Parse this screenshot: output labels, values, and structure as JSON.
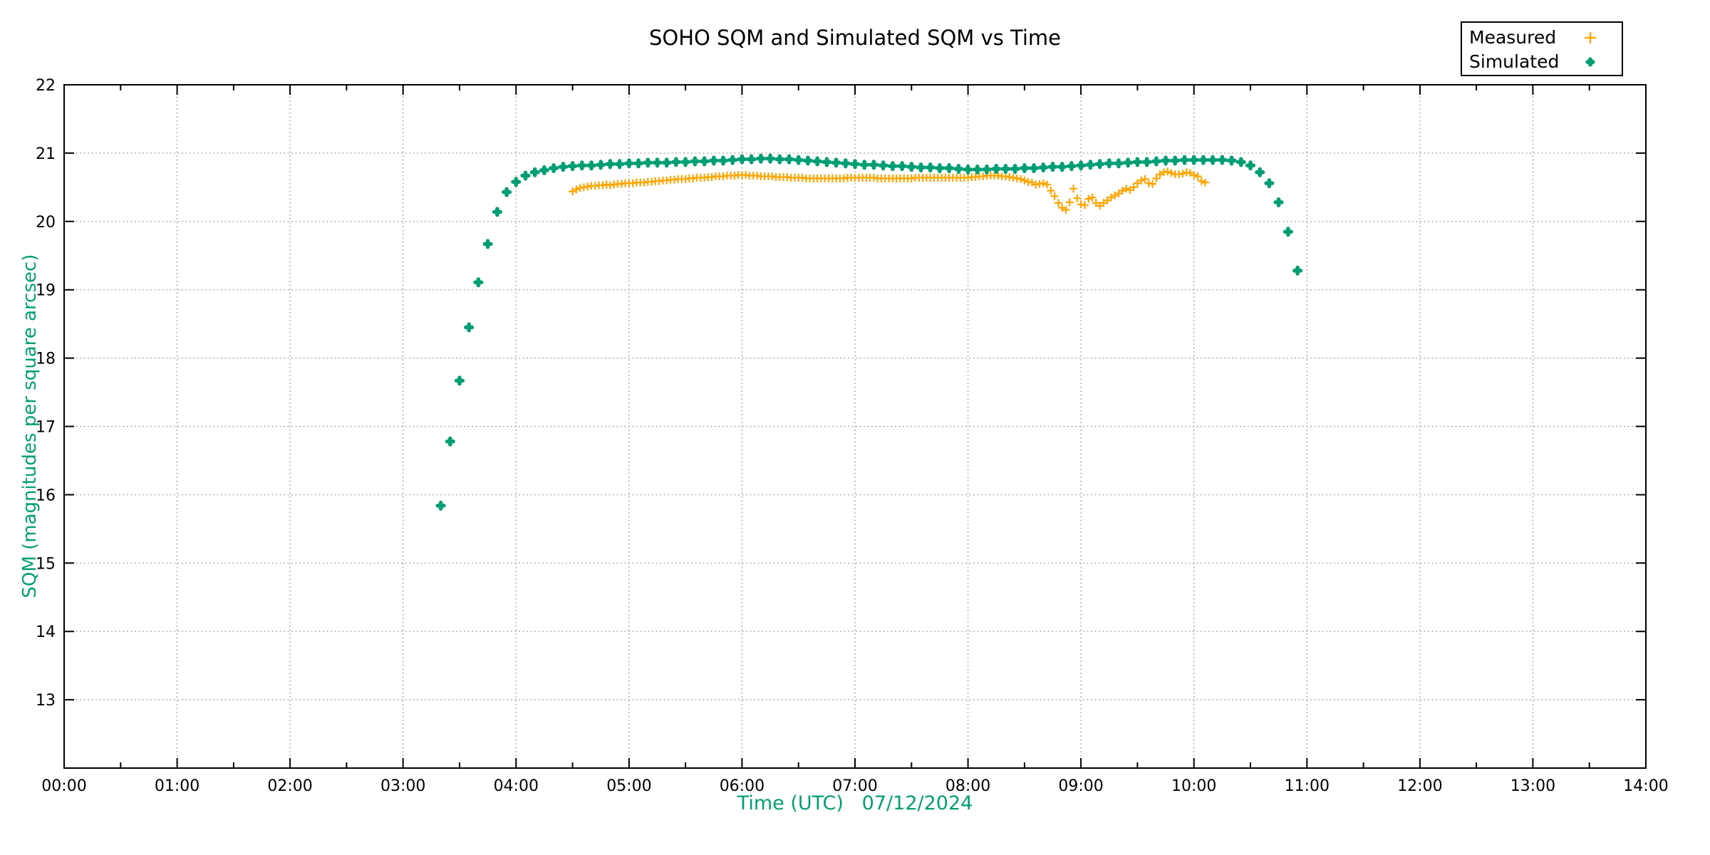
{
  "title": "SOHO SQM and Simulated SQM vs Time",
  "colors": {
    "measured": "#ffa500",
    "simulated": "#009e73",
    "axis_label_text": "#009e73",
    "tick_text": "#000000",
    "grid": "#a9a9a9",
    "frame": "#000000",
    "background": "#ffffff"
  },
  "legend": {
    "position": "top-right",
    "items": [
      {
        "label": "Measured",
        "marker": "plus",
        "color": "#ffa500"
      },
      {
        "label": "Simulated",
        "marker": "dot",
        "color": "#009e73"
      }
    ]
  },
  "chart_data": {
    "type": "scatter",
    "title": "SOHO SQM and Simulated SQM vs Time",
    "xlabel": "Time (UTC)   07/12/2024",
    "ylabel": "SQM (magnitudes per square arcsec)",
    "x_tick_labels": [
      "00:00",
      "01:00",
      "02:00",
      "03:00",
      "04:00",
      "05:00",
      "06:00",
      "07:00",
      "08:00",
      "09:00",
      "10:00",
      "11:00",
      "12:00",
      "13:00",
      "14:00"
    ],
    "x_minor_tick_interval_hours": 0.5,
    "y_tick_values": [
      13,
      14,
      15,
      16,
      17,
      18,
      19,
      20,
      21,
      22
    ],
    "xlim_hours": [
      0,
      14
    ],
    "ylim": [
      12,
      22
    ],
    "grid": true,
    "series": [
      {
        "name": "Measured",
        "marker": "plus",
        "color": "#ffa500",
        "start_time": "04:30",
        "step_minutes": 2,
        "sqm_values": [
          20.44,
          20.47,
          20.49,
          20.5,
          20.51,
          20.52,
          20.52,
          20.53,
          20.53,
          20.54,
          20.53,
          20.54,
          20.55,
          20.55,
          20.56,
          20.56,
          20.56,
          20.57,
          20.57,
          20.57,
          20.58,
          20.58,
          20.59,
          20.59,
          20.6,
          20.6,
          20.61,
          20.61,
          20.62,
          20.62,
          20.62,
          20.63,
          20.63,
          20.64,
          20.64,
          20.64,
          20.65,
          20.65,
          20.66,
          20.66,
          20.66,
          20.67,
          20.67,
          20.67,
          20.68,
          20.68,
          20.68,
          20.67,
          20.67,
          20.67,
          20.66,
          20.66,
          20.66,
          20.66,
          20.65,
          20.65,
          20.65,
          20.65,
          20.64,
          20.64,
          20.64,
          20.64,
          20.63,
          20.63,
          20.63,
          20.63,
          20.63,
          20.63,
          20.63,
          20.63,
          20.63,
          20.63,
          20.63,
          20.64,
          20.64,
          20.64,
          20.64,
          20.64,
          20.64,
          20.64,
          20.64,
          20.63,
          20.63,
          20.63,
          20.63,
          20.63,
          20.63,
          20.63,
          20.63,
          20.63,
          20.63,
          20.64,
          20.64,
          20.64,
          20.64,
          20.64,
          20.64,
          20.64,
          20.64,
          20.64,
          20.64,
          20.64,
          20.64,
          20.64,
          20.64,
          20.64,
          20.65,
          20.65,
          20.66,
          20.66,
          20.67,
          20.67,
          20.67,
          20.67,
          20.66,
          20.66,
          20.65,
          20.64,
          20.63,
          20.62,
          20.6,
          20.58,
          20.57,
          20.54,
          20.55,
          20.56,
          20.54,
          20.45,
          20.37,
          20.27,
          20.2,
          20.17,
          20.28,
          20.48,
          20.34,
          20.25,
          20.24,
          20.33,
          20.35,
          20.27,
          20.23,
          20.27,
          20.31,
          20.35,
          20.38,
          20.41,
          20.45,
          20.48,
          20.46,
          20.5,
          20.56,
          20.6,
          20.62,
          20.56,
          20.55,
          20.63,
          20.69,
          20.72,
          20.73,
          20.71,
          20.69,
          20.69,
          20.7,
          20.72,
          20.71,
          20.68,
          20.66,
          20.59,
          20.57
        ]
      },
      {
        "name": "Simulated",
        "marker": "dot",
        "color": "#009e73",
        "start_time": "03:20",
        "step_minutes": 5,
        "sqm_values": [
          15.84,
          16.78,
          17.67,
          18.45,
          19.11,
          19.67,
          20.14,
          20.43,
          20.58,
          20.67,
          20.72,
          20.75,
          20.78,
          20.8,
          20.81,
          20.82,
          20.82,
          20.83,
          20.84,
          20.84,
          20.85,
          20.85,
          20.86,
          20.86,
          20.86,
          20.87,
          20.87,
          20.88,
          20.88,
          20.89,
          20.89,
          20.9,
          20.91,
          20.91,
          20.92,
          20.92,
          20.91,
          20.91,
          20.9,
          20.89,
          20.88,
          20.87,
          20.86,
          20.85,
          20.84,
          20.83,
          20.83,
          20.82,
          20.81,
          20.81,
          20.8,
          20.79,
          20.79,
          20.78,
          20.78,
          20.77,
          20.76,
          20.76,
          20.76,
          20.77,
          20.77,
          20.77,
          20.78,
          20.78,
          20.79,
          20.8,
          20.8,
          20.81,
          20.82,
          20.83,
          20.84,
          20.85,
          20.85,
          20.86,
          20.87,
          20.87,
          20.88,
          20.89,
          20.89,
          20.9,
          20.9,
          20.9,
          20.9,
          20.9,
          20.89,
          20.87,
          20.82,
          20.72,
          20.56,
          20.28,
          19.85,
          19.28
        ]
      }
    ]
  }
}
